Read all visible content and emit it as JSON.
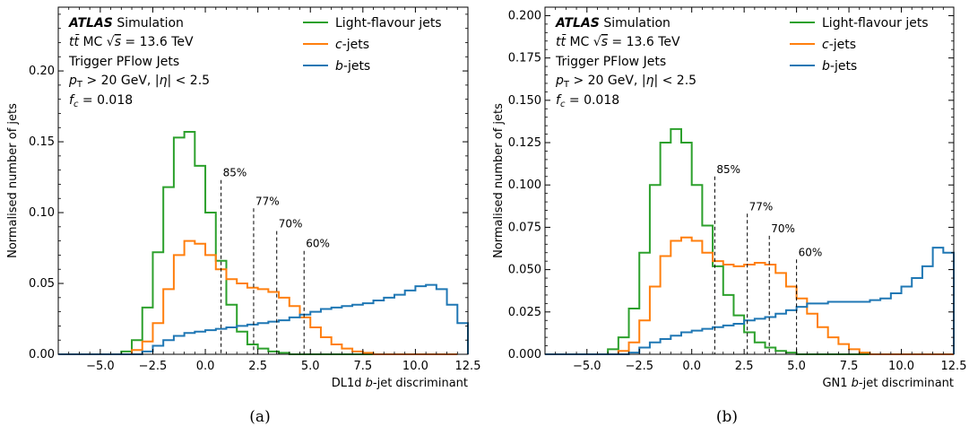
{
  "colors": {
    "light": "#2ca02c",
    "c": "#ff7f0e",
    "b": "#1f77b4"
  },
  "chart_data": [
    {
      "type": "line",
      "caption": "(a)",
      "xlabel_prefix": "DL1d ",
      "xlabel_var": "b",
      "xlabel_suffix": "-jet discriminant",
      "ylabel": "Normalised number of jets",
      "xlim": [
        -7,
        12.5
      ],
      "ylim": [
        0,
        0.245
      ],
      "xticks": [
        -5.0,
        -2.5,
        0.0,
        2.5,
        5.0,
        7.5,
        10.0,
        12.5
      ],
      "xtick_labels": [
        "−5.0",
        "−2.5",
        "0.0",
        "2.5",
        "5.0",
        "7.5",
        "10.0",
        "12.5"
      ],
      "yticks": [
        0.0,
        0.05,
        0.1,
        0.15,
        0.2
      ],
      "ytick_labels": [
        "0.00",
        "0.05",
        "0.10",
        "0.15",
        "0.20"
      ],
      "info": {
        "atlas": "ATLAS",
        "simulation": "Simulation",
        "line1": "t t̄ MC √s = 13.6 TeV",
        "line2": "Trigger PFlow Jets",
        "line3": "p_T > 20 GeV, |η| < 2.5",
        "line4": "f_c = 0.018"
      },
      "legend": [
        "Light-flavour jets",
        "c-jets",
        "b-jets"
      ],
      "legend_position": "top-right",
      "bin_start": -7.0,
      "bin_width": 0.5,
      "series": [
        {
          "name": "Light-flavour jets",
          "color_key": "light",
          "values": [
            0,
            0,
            0,
            0,
            0,
            0,
            0.002,
            0.01,
            0.033,
            0.072,
            0.118,
            0.153,
            0.157,
            0.133,
            0.1,
            0.066,
            0.035,
            0.016,
            0.007,
            0.004,
            0.002,
            0.001,
            0,
            0,
            0,
            0,
            0,
            0,
            0,
            0,
            0,
            0,
            0,
            0,
            0,
            0,
            0,
            0
          ]
        },
        {
          "name": "c-jets",
          "color_key": "c",
          "values": [
            0,
            0,
            0,
            0,
            0,
            0,
            0,
            0.003,
            0.009,
            0.022,
            0.046,
            0.07,
            0.08,
            0.078,
            0.07,
            0.06,
            0.053,
            0.05,
            0.047,
            0.046,
            0.044,
            0.04,
            0.034,
            0.026,
            0.019,
            0.012,
            0.007,
            0.004,
            0.002,
            0.001,
            0,
            0,
            0,
            0,
            0,
            0,
            0,
            0
          ]
        },
        {
          "name": "b-jets",
          "color_key": "b",
          "values": [
            0,
            0,
            0,
            0,
            0,
            0,
            0,
            0,
            0.002,
            0.006,
            0.01,
            0.013,
            0.015,
            0.016,
            0.017,
            0.018,
            0.019,
            0.02,
            0.021,
            0.022,
            0.023,
            0.024,
            0.026,
            0.028,
            0.03,
            0.032,
            0.033,
            0.034,
            0.035,
            0.036,
            0.038,
            0.04,
            0.042,
            0.045,
            0.048,
            0.049,
            0.046,
            0.035,
            0.022,
            0.011,
            0.004,
            0,
            0
          ]
        }
      ],
      "working_points": [
        {
          "label": "85%",
          "x": 0.75,
          "y": 0.123
        },
        {
          "label": "77%",
          "x": 2.3,
          "y": 0.103
        },
        {
          "label": "70%",
          "x": 3.4,
          "y": 0.087
        },
        {
          "label": "60%",
          "x": 4.7,
          "y": 0.073
        }
      ]
    },
    {
      "type": "line",
      "caption": "(b)",
      "xlabel_prefix": "GN1 ",
      "xlabel_var": "b",
      "xlabel_suffix": "-jet discriminant",
      "ylabel": "Normalised number of jets",
      "xlim": [
        -7,
        12.5
      ],
      "ylim": [
        0,
        0.205
      ],
      "xticks": [
        -5.0,
        -2.5,
        0.0,
        2.5,
        5.0,
        7.5,
        10.0,
        12.5
      ],
      "xtick_labels": [
        "−5.0",
        "−2.5",
        "0.0",
        "2.5",
        "5.0",
        "7.5",
        "10.0",
        "12.5"
      ],
      "yticks": [
        0.0,
        0.025,
        0.05,
        0.075,
        0.1,
        0.125,
        0.15,
        0.175,
        0.2
      ],
      "ytick_labels": [
        "0.000",
        "0.025",
        "0.050",
        "0.075",
        "0.100",
        "0.125",
        "0.150",
        "0.175",
        "0.200"
      ],
      "info": {
        "atlas": "ATLAS",
        "simulation": "Simulation",
        "line1": "t t̄ MC √s = 13.6 TeV",
        "line2": "Trigger PFlow Jets",
        "line3": "p_T > 20 GeV, |η| < 2.5",
        "line4": "f_c = 0.018"
      },
      "legend": [
        "Light-flavour jets",
        "c-jets",
        "b-jets"
      ],
      "legend_position": "top-right",
      "bin_start": -7.0,
      "bin_width": 0.5,
      "series": [
        {
          "name": "Light-flavour jets",
          "color_key": "light",
          "values": [
            0,
            0,
            0,
            0,
            0,
            0,
            0.003,
            0.01,
            0.027,
            0.06,
            0.1,
            0.125,
            0.133,
            0.125,
            0.1,
            0.076,
            0.052,
            0.035,
            0.023,
            0.013,
            0.007,
            0.004,
            0.002,
            0.001,
            0,
            0,
            0,
            0,
            0,
            0,
            0,
            0,
            0,
            0,
            0,
            0,
            0,
            0,
            0,
            0
          ]
        },
        {
          "name": "c-jets",
          "color_key": "c",
          "values": [
            0,
            0,
            0,
            0,
            0,
            0,
            0,
            0.002,
            0.007,
            0.02,
            0.04,
            0.058,
            0.067,
            0.069,
            0.067,
            0.06,
            0.055,
            0.053,
            0.052,
            0.053,
            0.054,
            0.053,
            0.048,
            0.04,
            0.033,
            0.024,
            0.016,
            0.01,
            0.006,
            0.003,
            0.001,
            0,
            0,
            0,
            0,
            0,
            0,
            0,
            0,
            0
          ]
        },
        {
          "name": "b-jets",
          "color_key": "b",
          "values": [
            0,
            0,
            0,
            0,
            0,
            0,
            0,
            0,
            0.001,
            0.004,
            0.007,
            0.009,
            0.011,
            0.013,
            0.014,
            0.015,
            0.016,
            0.017,
            0.018,
            0.02,
            0.021,
            0.022,
            0.024,
            0.026,
            0.028,
            0.03,
            0.03,
            0.031,
            0.031,
            0.031,
            0.031,
            0.032,
            0.033,
            0.036,
            0.04,
            0.045,
            0.052,
            0.063,
            0.06,
            0.049,
            0.023,
            0.003,
            0
          ]
        }
      ],
      "working_points": [
        {
          "label": "85%",
          "x": 1.1,
          "y": 0.105
        },
        {
          "label": "77%",
          "x": 2.65,
          "y": 0.083
        },
        {
          "label": "70%",
          "x": 3.7,
          "y": 0.07
        },
        {
          "label": "60%",
          "x": 5.0,
          "y": 0.056
        }
      ]
    }
  ]
}
